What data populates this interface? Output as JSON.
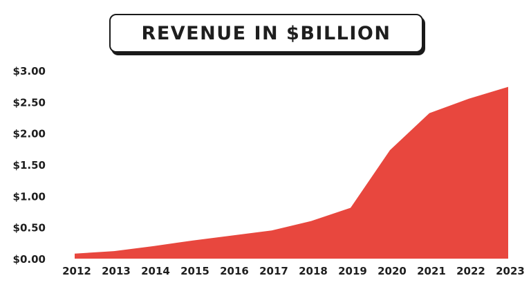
{
  "chart_data": {
    "type": "area",
    "title": "REVENUE IN $BILLION",
    "xlabel": "",
    "ylabel": "",
    "categories": [
      "2012",
      "2013",
      "2014",
      "2015",
      "2016",
      "2017",
      "2018",
      "2019",
      "2020",
      "2021",
      "2022",
      "2023"
    ],
    "values": [
      0.08,
      0.12,
      0.2,
      0.29,
      0.37,
      0.45,
      0.6,
      0.81,
      1.73,
      2.32,
      2.55,
      2.74
    ],
    "ylim": [
      0,
      3
    ],
    "yticks": [
      "$0.00",
      "$0.50",
      "$1.00",
      "$1.50",
      "$2.00",
      "$2.50",
      "$3.00"
    ],
    "grid": false,
    "fill_color": "#E8473E"
  }
}
